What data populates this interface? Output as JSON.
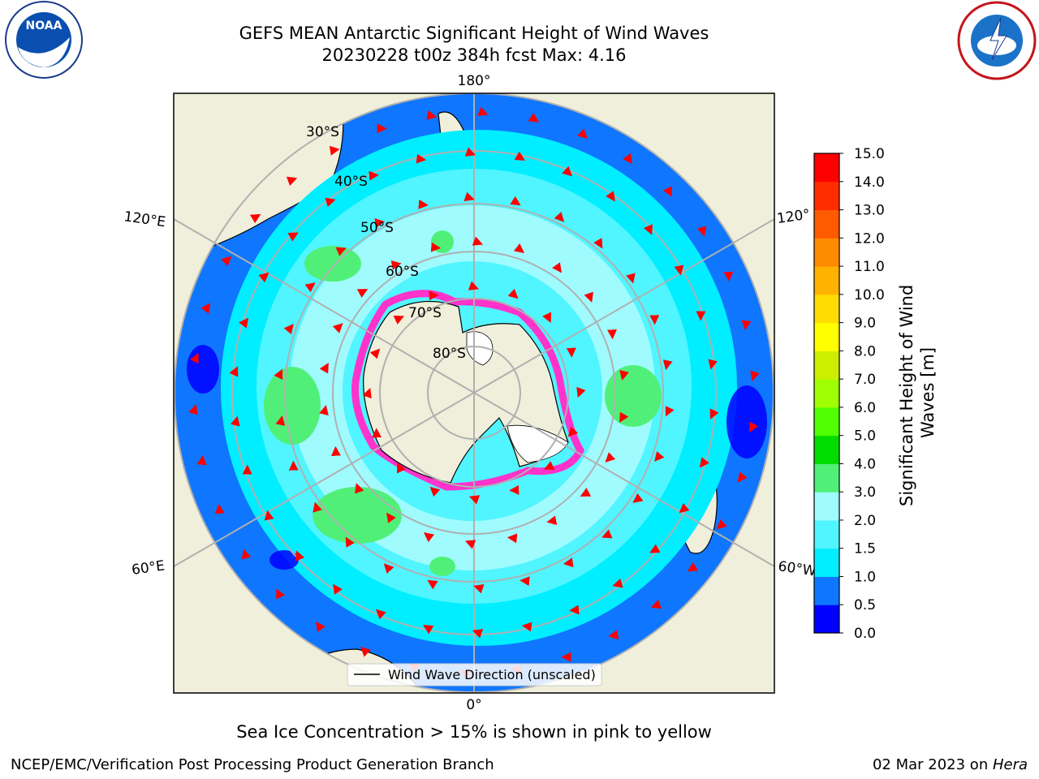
{
  "title": {
    "line1": "GEFS MEAN Antarctic Significant Height of Wind Waves",
    "line2": "20230228 t00z 384h fcst   Max: 4.16"
  },
  "logos": {
    "left_text": "NOAA",
    "left_ring": "NATIONAL OCEANIC AND ATMOSPHERIC ADMINISTRATION · U.S. DEPARTMENT OF COMMERCE",
    "right_ring": "NATIONAL WEATHER SERVICE"
  },
  "map": {
    "lon_labels": {
      "top": "180°",
      "bottom": "0°",
      "left_upper": "120°E",
      "left_lower": "60°E",
      "right_upper": "120°",
      "right_lower": "60°W"
    },
    "lat_labels": [
      "30°S",
      "40°S",
      "50°S",
      "60°S",
      "70°S",
      "80°S"
    ],
    "legend": "Wind Wave Direction (unscaled)"
  },
  "colorbar": {
    "label_line1": "Significant Height of Wind",
    "label_line2": "Waves [m]",
    "ticks": [
      "0.0",
      "0.5",
      "1.0",
      "1.5",
      "2.0",
      "3.0",
      "4.0",
      "5.0",
      "6.0",
      "7.0",
      "8.0",
      "9.0",
      "10.0",
      "11.0",
      "12.0",
      "13.0",
      "14.0",
      "15.0"
    ],
    "colors": [
      "#0000ff",
      "#0f76ff",
      "#00eeff",
      "#50f5ff",
      "#a0fbff",
      "#50f078",
      "#00dc00",
      "#50ff00",
      "#a0ff00",
      "#ccee00",
      "#ffff00",
      "#ffdd00",
      "#ffb300",
      "#ff8b00",
      "#ff5a00",
      "#ff2d00",
      "#ff0000"
    ]
  },
  "note": "Sea Ice Concentration > 15% is shown in pink to yellow",
  "footer": {
    "left": "NCEP/EMC/Verification Post Processing Product Generation Branch",
    "right_date": "02 Mar 2023 on ",
    "right_machine": "Hera"
  },
  "palette": {
    "land": "#efefdb",
    "ocean_low": "#0f76ff",
    "ocean_mid": "#00eeff",
    "ocean_light": "#a0fbff",
    "patch_green": "#50f078",
    "arrow": "#ff0000",
    "sea_ice": "#ff33cc"
  }
}
